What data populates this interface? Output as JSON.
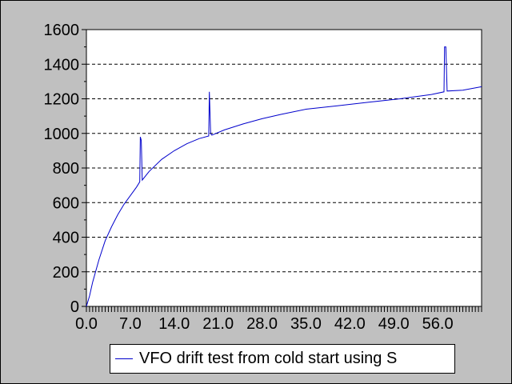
{
  "chart_data": {
    "type": "line",
    "title": "",
    "xlabel": "",
    "ylabel": "",
    "xlim": [
      0,
      63
    ],
    "ylim": [
      0,
      1600
    ],
    "y_ticks": [
      "0",
      "200",
      "400",
      "600",
      "800",
      "1000",
      "1200",
      "1400",
      "1600"
    ],
    "x_ticks": [
      "0.0",
      "7.0",
      "14.0",
      "21.0",
      "28.0",
      "35.0",
      "42.0",
      "49.0",
      "56.0"
    ],
    "grid": "horizontal dashed",
    "legend_position": "bottom",
    "line_color": "#0000cc",
    "series": [
      {
        "name": "VFO drift test from cold start using S",
        "points": [
          [
            0,
            0
          ],
          [
            0.5,
            60
          ],
          [
            1,
            140
          ],
          [
            2,
            270
          ],
          [
            3,
            380
          ],
          [
            4,
            460
          ],
          [
            5,
            530
          ],
          [
            6,
            590
          ],
          [
            7,
            640
          ],
          [
            8,
            690
          ],
          [
            8.5,
            720
          ],
          [
            8.6,
            980
          ],
          [
            8.75,
            960
          ],
          [
            8.9,
            730
          ],
          [
            10,
            780
          ],
          [
            12,
            850
          ],
          [
            14,
            900
          ],
          [
            16,
            940
          ],
          [
            18,
            970
          ],
          [
            19.5,
            985
          ],
          [
            19.6,
            1240
          ],
          [
            19.8,
            1000
          ],
          [
            20,
            990
          ],
          [
            22,
            1020
          ],
          [
            25,
            1055
          ],
          [
            28,
            1085
          ],
          [
            31,
            1110
          ],
          [
            35,
            1140
          ],
          [
            40,
            1160
          ],
          [
            45,
            1180
          ],
          [
            50,
            1200
          ],
          [
            55,
            1225
          ],
          [
            57,
            1240
          ],
          [
            57.1,
            1500
          ],
          [
            57.3,
            1500
          ],
          [
            57.5,
            1245
          ],
          [
            60,
            1250
          ],
          [
            63,
            1270
          ]
        ]
      }
    ]
  }
}
